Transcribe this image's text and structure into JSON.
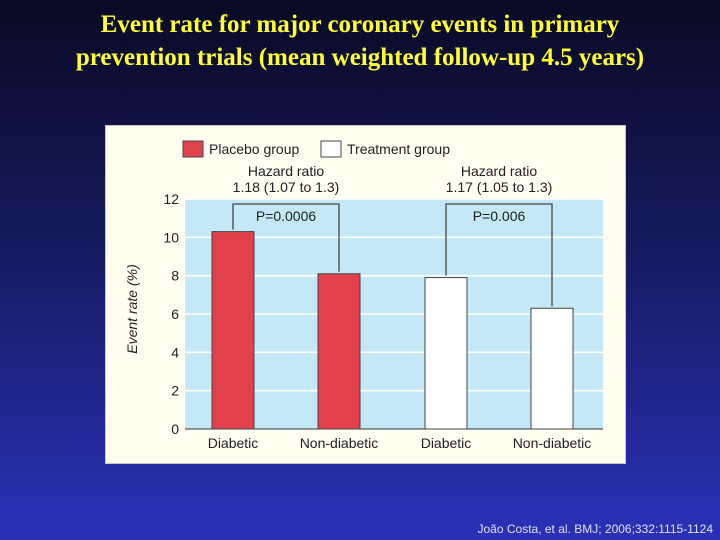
{
  "slide": {
    "title_line1": "Event rate for major coronary events in primary",
    "title_line2": "prevention trials (mean weighted follow-up 4.5 years)",
    "citation": "João Costa, et al. BMJ; 2006;332:1115-1124"
  },
  "colors": {
    "placebo": "#e0414b",
    "treatment": "#ffffff",
    "plot_bg": "#c4e8f6",
    "panel_bg": "#fffef0"
  },
  "chart_data": {
    "type": "bar",
    "title": "",
    "xlabel": "",
    "ylabel": "Event rate (%)",
    "ylim": [
      0,
      12
    ],
    "yticks": [
      0,
      2,
      4,
      6,
      8,
      10,
      12
    ],
    "grid": true,
    "legend": {
      "placement": "top-left",
      "entries": [
        {
          "name": "Placebo group",
          "color": "#e0414b"
        },
        {
          "name": "Treatment group",
          "color": "#ffffff"
        }
      ]
    },
    "categories": [
      "Diabetic",
      "Non-diabetic",
      "Diabetic",
      "Non-diabetic"
    ],
    "bars": [
      {
        "category": "Diabetic",
        "group": "Placebo group",
        "value": 10.3
      },
      {
        "category": "Non-diabetic",
        "group": "Placebo group",
        "value": 8.1
      },
      {
        "category": "Diabetic",
        "group": "Treatment group",
        "value": 7.9
      },
      {
        "category": "Non-diabetic",
        "group": "Treatment group",
        "value": 6.3
      }
    ],
    "annotations": [
      {
        "bars": [
          0,
          1
        ],
        "hr_label": "Hazard ratio",
        "hr_value": "1.18 (1.07 to 1.3)",
        "p_value": "P=0.0006"
      },
      {
        "bars": [
          2,
          3
        ],
        "hr_label": "Hazard ratio",
        "hr_value": "1.17 (1.05 to 1.3)",
        "p_value": "P=0.006"
      }
    ]
  }
}
